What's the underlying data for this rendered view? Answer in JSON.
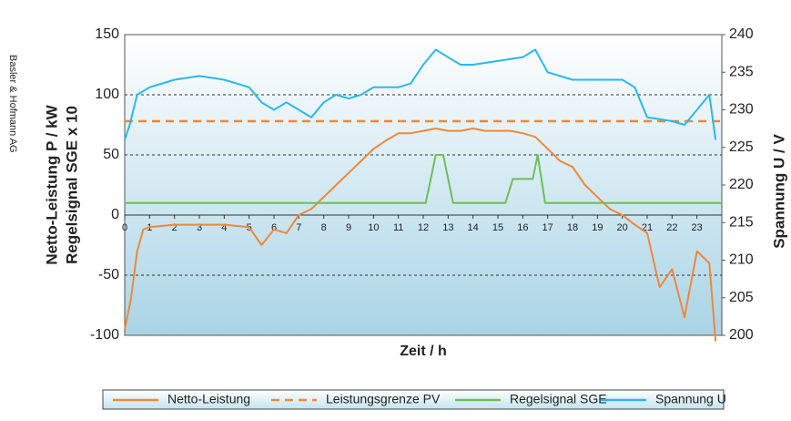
{
  "chart_data": {
    "type": "line",
    "credit": "Basler & Hofmann AG",
    "ylabel": [
      "Netto-Leistung P / kW",
      "Regelsignal SGE x 10"
    ],
    "y2label": "Spannung U / V",
    "xlabel": "Zeit / h",
    "xlim": [
      0,
      24
    ],
    "xticks": [
      0,
      1,
      2,
      3,
      4,
      5,
      6,
      7,
      8,
      9,
      10,
      11,
      12,
      13,
      14,
      15,
      16,
      17,
      18,
      19,
      20,
      21,
      22,
      23
    ],
    "ylim": [
      -100,
      150
    ],
    "yticks": [
      -100,
      -50,
      0,
      50,
      100,
      150
    ],
    "y2lim": [
      200,
      240
    ],
    "y2ticks": [
      200,
      205,
      210,
      215,
      220,
      225,
      230,
      235,
      240
    ],
    "grid": true,
    "legend": "bottom",
    "series": [
      {
        "name": "Netto-Leistung",
        "color": "#f0873a",
        "x": [
          0,
          0.25,
          0.5,
          0.75,
          1,
          2,
          3,
          4,
          5,
          5.5,
          6,
          6.5,
          7,
          7.5,
          8,
          8.5,
          9,
          9.5,
          10,
          10.5,
          11,
          11.5,
          12,
          12.5,
          13,
          13.5,
          14,
          14.5,
          15,
          15.5,
          16,
          16.5,
          17,
          17.5,
          18,
          18.5,
          19,
          19.5,
          20,
          20.5,
          21,
          21.5,
          22,
          22.5,
          23,
          23.5,
          23.75
        ],
        "values": [
          -95,
          -70,
          -30,
          -12,
          -10,
          -8,
          -8,
          -8,
          -10,
          -25,
          -12,
          -15,
          0,
          5,
          15,
          25,
          35,
          45,
          55,
          62,
          68,
          68,
          70,
          72,
          70,
          70,
          72,
          70,
          70,
          70,
          68,
          65,
          55,
          45,
          40,
          25,
          15,
          5,
          0,
          -8,
          -15,
          -60,
          -45,
          -85,
          -30,
          -40,
          -105
        ]
      },
      {
        "name": "Leistungsgrenze PV",
        "color": "#f0873a",
        "dash": true,
        "x": [
          0,
          24
        ],
        "values": [
          78,
          78
        ]
      },
      {
        "name": "Regelsignal SGE",
        "color": "#6cbf5a",
        "x": [
          0,
          12.1,
          12.5,
          12.8,
          13.2,
          15.3,
          15.6,
          16.4,
          16.6,
          16.9,
          24
        ],
        "values": [
          10,
          10,
          50,
          50,
          10,
          10,
          30,
          30,
          50,
          10,
          10
        ]
      },
      {
        "name": "Spannung U",
        "color": "#2ab8e8",
        "axis": "y2",
        "x": [
          0,
          0.2,
          0.5,
          1,
          2,
          3,
          4,
          4.5,
          5,
          5.5,
          6,
          6.5,
          7,
          7.5,
          8,
          8.5,
          9,
          9.5,
          10,
          11,
          11.5,
          12,
          12.5,
          13,
          13.5,
          14,
          15,
          16,
          16.5,
          17,
          18,
          19,
          20,
          20.5,
          21,
          22,
          22.5,
          23,
          23.5,
          23.75
        ],
        "values": [
          226,
          228,
          232,
          233,
          234,
          234.5,
          234,
          233.5,
          233,
          231,
          230,
          231,
          230,
          229,
          231,
          232,
          231.5,
          232,
          233,
          233,
          233.5,
          236,
          238,
          237,
          236,
          236,
          236.5,
          237,
          238,
          235,
          234,
          234,
          234,
          233,
          229,
          228.5,
          228,
          230,
          232,
          226
        ]
      }
    ]
  }
}
